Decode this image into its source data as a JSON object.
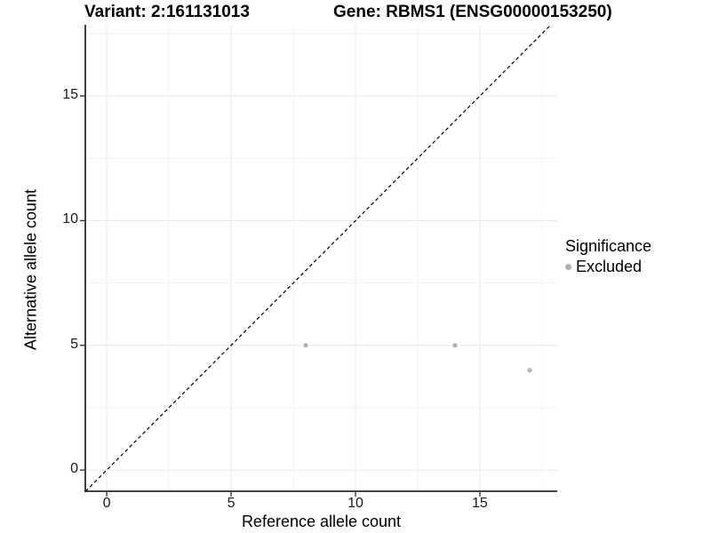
{
  "header": {
    "title_variant": "Variant: 2:161131013",
    "title_gene": "Gene: RBMS1 (ENSG00000153250)"
  },
  "chart_data": {
    "type": "scatter",
    "title": "Variant: 2:161131013 | Gene: RBMS1 (ENSG00000153250)",
    "xlabel": "Reference allele count",
    "ylabel": "Alternative allele count",
    "xlim": [
      -0.86,
      18.11
    ],
    "ylim": [
      -0.85,
      17.85
    ],
    "x_ticks": [
      0,
      5,
      10,
      15
    ],
    "y_ticks": [
      0,
      5,
      10,
      15
    ],
    "x_minor_ticks": [
      2.5,
      7.5,
      12.5,
      17.5
    ],
    "y_minor_ticks": [
      2.5,
      7.5,
      12.5,
      17.5
    ],
    "grid": true,
    "identity_line": {
      "style": "dashed",
      "slope": 1,
      "intercept": 0
    },
    "series": [
      {
        "name": "Excluded",
        "color": "#b4b4b4",
        "points": [
          {
            "x": 8,
            "y": 5
          },
          {
            "x": 14,
            "y": 5
          },
          {
            "x": 17,
            "y": 4
          }
        ]
      }
    ],
    "legend": {
      "title": "Significance",
      "position": "right",
      "items": [
        {
          "label": "Excluded",
          "color": "#afafaf"
        }
      ]
    }
  },
  "colors": {
    "grid_major": "#e7e7e7",
    "grid_minor": "#f2f2f2",
    "axis_line": "#2a2a2a",
    "identity_line": "#000000",
    "point": "#b4b4b4"
  }
}
